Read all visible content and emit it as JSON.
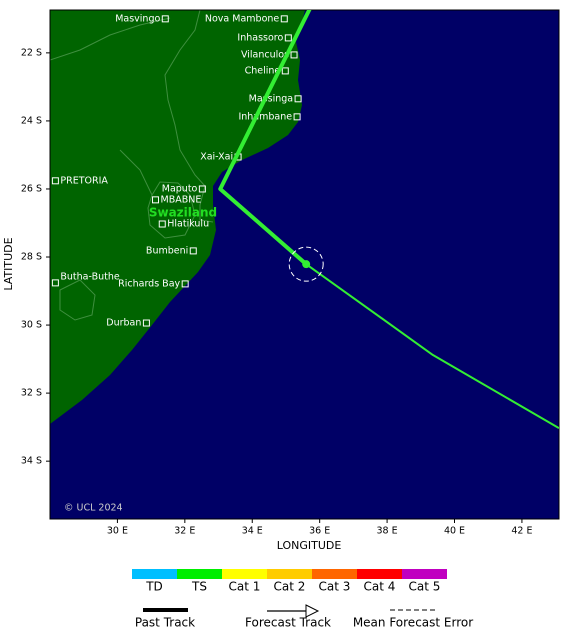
{
  "map": {
    "xlabel": "LONGITUDE",
    "ylabel": "LATITUDE",
    "xlim": [
      28,
      43.1
    ],
    "ylim": [
      -35.7,
      -20.74
    ],
    "xticks": [
      {
        "value": 30,
        "label": "30 E"
      },
      {
        "value": 32,
        "label": "32 E"
      },
      {
        "value": 34,
        "label": "34 E"
      },
      {
        "value": 36,
        "label": "36 E"
      },
      {
        "value": 38,
        "label": "38 E"
      },
      {
        "value": 40,
        "label": "40 E"
      },
      {
        "value": 42,
        "label": "42 E"
      }
    ],
    "yticks": [
      {
        "value": -22,
        "label": "22 S"
      },
      {
        "value": -24,
        "label": "24 S"
      },
      {
        "value": -26,
        "label": "26 S"
      },
      {
        "value": -28,
        "label": "28 S"
      },
      {
        "value": -30,
        "label": "30 S"
      },
      {
        "value": -32,
        "label": "32 S"
      },
      {
        "value": -34,
        "label": "34 S"
      }
    ],
    "copyright": "© UCL 2024",
    "country_label": "Swaziland",
    "cities": [
      {
        "name": "Masvingo",
        "lon": 31.42,
        "lat": -21.0
      },
      {
        "name": "Nova Mambone",
        "lon": 34.95,
        "lat": -21.0
      },
      {
        "name": "Inhassoro",
        "lon": 35.07,
        "lat": -21.56
      },
      {
        "name": "Vilanculos",
        "lon": 35.24,
        "lat": -22.06
      },
      {
        "name": "Cheline",
        "lon": 34.98,
        "lat": -22.53
      },
      {
        "name": "Massinga",
        "lon": 35.36,
        "lat": -23.35
      },
      {
        "name": "Inhambane",
        "lon": 35.33,
        "lat": -23.88
      },
      {
        "name": "Xai-Xai",
        "lon": 33.58,
        "lat": -25.06
      },
      {
        "name": "PRETORIA",
        "lon": 28.16,
        "lat": -25.76
      },
      {
        "name": "Maputo",
        "lon": 32.52,
        "lat": -26.0
      },
      {
        "name": "MBABNE",
        "lon": 31.13,
        "lat": -26.32
      },
      {
        "name": "Hlatikulu",
        "lon": 31.33,
        "lat": -27.03
      },
      {
        "name": "Bumbeni",
        "lon": 32.25,
        "lat": -27.82
      },
      {
        "name": "Butha-Buthe",
        "lon": 28.16,
        "lat": -28.76
      },
      {
        "name": "Richards Bay",
        "lon": 32.01,
        "lat": -28.79
      },
      {
        "name": "Durban",
        "lon": 30.86,
        "lat": -29.94
      }
    ],
    "track_color": "#33ee33",
    "past_track": {
      "lon": [
        35.72,
        33.05,
        35.6
      ],
      "lat": [
        -20.68,
        -26.0,
        -28.21
      ]
    },
    "forecast_track": {
      "lon": [
        35.6,
        39.36,
        43.1
      ],
      "lat": [
        -28.21,
        -30.88,
        -33.03
      ]
    },
    "legend": {
      "categories": [
        {
          "name": "TD",
          "color": "#00bfff"
        },
        {
          "name": "TS",
          "color": "#00ee00"
        },
        {
          "name": "Cat 1",
          "color": "#ffff00"
        },
        {
          "name": "Cat 2",
          "color": "#ffcc00"
        },
        {
          "name": "Cat 3",
          "color": "#ff6600"
        },
        {
          "name": "Cat 4",
          "color": "#ff0000"
        },
        {
          "name": "Cat 5",
          "color": "#c000c0"
        }
      ],
      "items": [
        "Past Track",
        "Forecast Track",
        "Mean Forecast Error"
      ]
    }
  }
}
